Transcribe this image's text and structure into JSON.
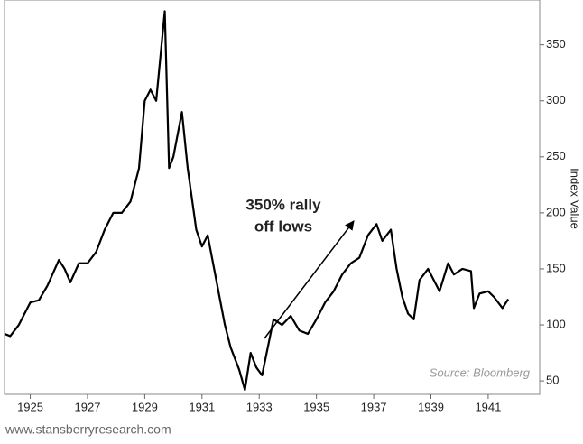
{
  "chart_data": {
    "type": "line",
    "y_label": "Index Value",
    "annotation": [
      "350% rally",
      "off lows"
    ],
    "source": "Source: Bloomberg",
    "footer": "www.stansberryresearch.com",
    "series": [
      {
        "color": "#000000",
        "x": [
          1924.1,
          1924.3,
          1924.6,
          1925.0,
          1925.3,
          1925.6,
          1926.0,
          1926.2,
          1926.4,
          1926.7,
          1927.0,
          1927.3,
          1927.6,
          1927.9,
          1928.2,
          1928.5,
          1928.8,
          1929.0,
          1929.2,
          1929.4,
          1929.7,
          1929.85,
          1930.0,
          1930.3,
          1930.5,
          1930.8,
          1931.0,
          1931.2,
          1931.5,
          1931.8,
          1932.0,
          1932.3,
          1932.5,
          1932.7,
          1932.9,
          1933.1,
          1933.3,
          1933.5,
          1933.8,
          1934.1,
          1934.4,
          1934.7,
          1935.0,
          1935.3,
          1935.6,
          1935.9,
          1936.2,
          1936.5,
          1936.8,
          1937.1,
          1937.3,
          1937.6,
          1937.8,
          1938.0,
          1938.2,
          1938.4,
          1938.6,
          1938.9,
          1939.1,
          1939.3,
          1939.6,
          1939.8,
          1940.1,
          1940.4,
          1940.5,
          1940.7,
          1941.0,
          1941.2,
          1941.5,
          1941.7
        ],
        "values": [
          92,
          90,
          100,
          120,
          122,
          135,
          158,
          150,
          138,
          155,
          155,
          165,
          185,
          200,
          200,
          210,
          240,
          300,
          310,
          300,
          380,
          240,
          250,
          290,
          240,
          185,
          170,
          180,
          140,
          100,
          80,
          60,
          42,
          75,
          62,
          55,
          80,
          105,
          100,
          108,
          95,
          92,
          105,
          120,
          130,
          145,
          155,
          160,
          180,
          190,
          175,
          185,
          150,
          125,
          110,
          105,
          140,
          150,
          140,
          130,
          155,
          145,
          150,
          148,
          115,
          128,
          130,
          125,
          115,
          123
        ]
      }
    ],
    "xlim": [
      1924.1,
      1942.8
    ],
    "xticks": [
      1925,
      1927,
      1929,
      1931,
      1933,
      1935,
      1937,
      1939,
      1941
    ],
    "ylim": [
      38,
      390
    ],
    "yticks": [
      50,
      100,
      150,
      200,
      250,
      300,
      350
    ]
  }
}
